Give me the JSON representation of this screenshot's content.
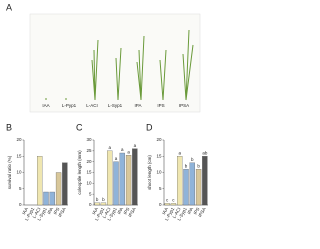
{
  "panel_a": {
    "label": "A",
    "plant_labels": [
      "IAA",
      "L-Pyp1",
      "L-ACI",
      "L-Syp1",
      "IPA",
      "IPS",
      "IPSA"
    ]
  },
  "chart_data": [
    {
      "type": "bar",
      "panel_label": "B",
      "ylabel": "survival ratio (%)",
      "categories": [
        "IAA",
        "L-Pyp1",
        "L-ACI",
        "L-Syp1",
        "IPA",
        "IPS",
        "IPSA"
      ],
      "values": [
        0,
        0,
        15,
        4,
        4,
        10,
        13
      ],
      "colors": [
        "#efe6b0",
        "#efe6b0",
        "#efe6b0",
        "#8fb3d9",
        "#8fb3d9",
        "#d8c79a",
        "#555555"
      ],
      "ylim": [
        0,
        20
      ],
      "yticks": [
        0,
        5,
        10,
        15,
        20
      ]
    },
    {
      "type": "bar",
      "panel_label": "C",
      "ylabel": "coleoptile length (mm)",
      "categories": [
        "IAA",
        "L-Pyp1",
        "L-ACI",
        "L-Syp1",
        "IPA",
        "IPS",
        "IPSA"
      ],
      "values": [
        1,
        1,
        25,
        20,
        24,
        23,
        26
      ],
      "colors": [
        "#efe6b0",
        "#efe6b0",
        "#efe6b0",
        "#8fb3d9",
        "#8fb3d9",
        "#d8c79a",
        "#555555"
      ],
      "ylim": [
        0,
        30
      ],
      "yticks": [
        0,
        5,
        10,
        15,
        20,
        25,
        30
      ],
      "annotations": [
        "b",
        "b",
        "a",
        "a",
        "a",
        "a",
        "a"
      ]
    },
    {
      "type": "bar",
      "panel_label": "D",
      "ylabel": "shoot length (cm)",
      "categories": [
        "IAA",
        "L-Pyp1",
        "L-ACI",
        "L-Syp1",
        "IPA",
        "IPS",
        "IPSA"
      ],
      "values": [
        0.5,
        0.5,
        15,
        11,
        13,
        11,
        15
      ],
      "colors": [
        "#efe6b0",
        "#efe6b0",
        "#efe6b0",
        "#8fb3d9",
        "#8fb3d9",
        "#d8c79a",
        "#555555"
      ],
      "ylim": [
        0,
        20
      ],
      "yticks": [
        0,
        5,
        10,
        15,
        20
      ],
      "annotations": [
        "c",
        "c",
        "a",
        "b",
        "b",
        "b",
        "ab"
      ]
    }
  ]
}
